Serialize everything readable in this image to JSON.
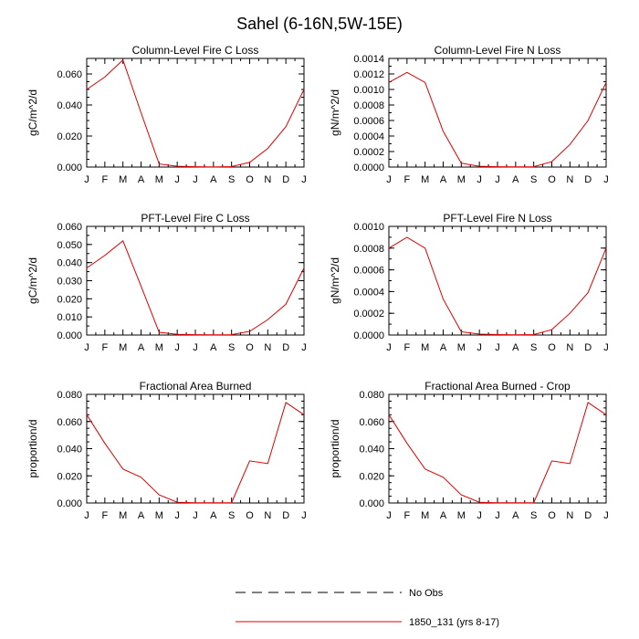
{
  "figure_title": "Sahel (6-16N,5W-15E)",
  "legend": [
    {
      "label": "No Obs",
      "color": "#000000",
      "dash": "dashed"
    },
    {
      "label": "1850_131 (yrs 8-17)",
      "color": "#e00000",
      "dash": "solid"
    }
  ],
  "chart_data": [
    {
      "type": "line",
      "title": "Column-Level Fire C Loss",
      "xlabel": "",
      "ylabel": "gC/m^2/d",
      "categories": [
        "J",
        "F",
        "M",
        "A",
        "M",
        "J",
        "J",
        "A",
        "S",
        "O",
        "N",
        "D",
        "J"
      ],
      "ylim": [
        0,
        0.07
      ],
      "yticks": [
        "0.000",
        "0.020",
        "0.040",
        "0.060"
      ],
      "ytick_values": [
        0,
        0.02,
        0.04,
        0.06
      ],
      "yminor_step": 0.005,
      "series": [
        {
          "name": "1850_131 (yrs 8-17)",
          "color": "#e00000",
          "values": [
            0.05,
            0.058,
            0.069,
            0.035,
            0.002,
            0.0005,
            0.0002,
            0.0001,
            0.0003,
            0.003,
            0.012,
            0.026,
            0.05
          ]
        }
      ]
    },
    {
      "type": "line",
      "title": "Column-Level Fire N Loss",
      "xlabel": "",
      "ylabel": "gN/m^2/d",
      "categories": [
        "J",
        "F",
        "M",
        "A",
        "M",
        "J",
        "J",
        "A",
        "S",
        "O",
        "N",
        "D",
        "J"
      ],
      "ylim": [
        0,
        0.0014
      ],
      "yticks": [
        "0.0000",
        "0.0002",
        "0.0004",
        "0.0006",
        "0.0008",
        "0.0010",
        "0.0012",
        "0.0014"
      ],
      "ytick_values": [
        0,
        0.0002,
        0.0004,
        0.0006,
        0.0008,
        0.001,
        0.0012,
        0.0014
      ],
      "yminor_step": 0.0001,
      "series": [
        {
          "name": "1850_131 (yrs 8-17)",
          "color": "#e00000",
          "values": [
            0.00109,
            0.00122,
            0.00109,
            0.00046,
            5e-05,
            1e-05,
            5e-06,
            3e-06,
            5e-06,
            7e-05,
            0.00029,
            0.0006,
            0.00109
          ]
        }
      ]
    },
    {
      "type": "line",
      "title": "PFT-Level Fire C Loss",
      "xlabel": "",
      "ylabel": "gC/m^2/d",
      "categories": [
        "J",
        "F",
        "M",
        "A",
        "M",
        "J",
        "J",
        "A",
        "S",
        "O",
        "N",
        "D",
        "J"
      ],
      "ylim": [
        0,
        0.06
      ],
      "yticks": [
        "0.000",
        "0.010",
        "0.020",
        "0.030",
        "0.040",
        "0.050",
        "0.060"
      ],
      "ytick_values": [
        0,
        0.01,
        0.02,
        0.03,
        0.04,
        0.05,
        0.06
      ],
      "yminor_step": 0.005,
      "series": [
        {
          "name": "1850_131 (yrs 8-17)",
          "color": "#e00000",
          "values": [
            0.037,
            0.044,
            0.052,
            0.027,
            0.0015,
            0.0004,
            0.0002,
            0.0001,
            0.0002,
            0.002,
            0.0085,
            0.017,
            0.037
          ]
        }
      ]
    },
    {
      "type": "line",
      "title": "PFT-Level Fire N Loss",
      "xlabel": "",
      "ylabel": "gN/m^2/d",
      "categories": [
        "J",
        "F",
        "M",
        "A",
        "M",
        "J",
        "J",
        "A",
        "S",
        "O",
        "N",
        "D",
        "J"
      ],
      "ylim": [
        0,
        0.001
      ],
      "yticks": [
        "0.0000",
        "0.0002",
        "0.0004",
        "0.0006",
        "0.0008",
        "0.0010"
      ],
      "ytick_values": [
        0,
        0.0002,
        0.0004,
        0.0006,
        0.0008,
        0.001
      ],
      "yminor_step": 0.0001,
      "series": [
        {
          "name": "1850_131 (yrs 8-17)",
          "color": "#e00000",
          "values": [
            0.0008,
            0.0009,
            0.0008,
            0.00033,
            3e-05,
            8e-06,
            4e-06,
            2e-06,
            4e-06,
            5e-05,
            0.0002,
            0.00039,
            0.0008
          ]
        }
      ]
    },
    {
      "type": "line",
      "title": "Fractional Area Burned",
      "xlabel": "",
      "ylabel": "proportion/d",
      "categories": [
        "J",
        "F",
        "M",
        "A",
        "M",
        "J",
        "J",
        "A",
        "S",
        "O",
        "N",
        "D",
        "J"
      ],
      "ylim": [
        0,
        0.08
      ],
      "yticks": [
        "0.000",
        "0.020",
        "0.040",
        "0.060",
        "0.080"
      ],
      "ytick_values": [
        0,
        0.02,
        0.04,
        0.06,
        0.08
      ],
      "yminor_step": 0.005,
      "series": [
        {
          "name": "1850_131 (yrs 8-17)",
          "color": "#e00000",
          "values": [
            0.065,
            0.044,
            0.025,
            0.019,
            0.006,
            0.0005,
            0.0002,
            0.0002,
            0.0002,
            0.031,
            0.029,
            0.074,
            0.065
          ]
        }
      ]
    },
    {
      "type": "line",
      "title": "Fractional Area Burned - Crop",
      "xlabel": "",
      "ylabel": "proportion/d",
      "categories": [
        "J",
        "F",
        "M",
        "A",
        "M",
        "J",
        "J",
        "A",
        "S",
        "O",
        "N",
        "D",
        "J"
      ],
      "ylim": [
        0,
        0.08
      ],
      "yticks": [
        "0.000",
        "0.020",
        "0.040",
        "0.060",
        "0.080"
      ],
      "ytick_values": [
        0,
        0.02,
        0.04,
        0.06,
        0.08
      ],
      "yminor_step": 0.005,
      "series": [
        {
          "name": "1850_131 (yrs 8-17)",
          "color": "#e00000",
          "values": [
            0.065,
            0.044,
            0.025,
            0.019,
            0.006,
            0.0005,
            0.0002,
            0.0002,
            0.0002,
            0.031,
            0.029,
            0.074,
            0.065
          ]
        }
      ]
    }
  ]
}
